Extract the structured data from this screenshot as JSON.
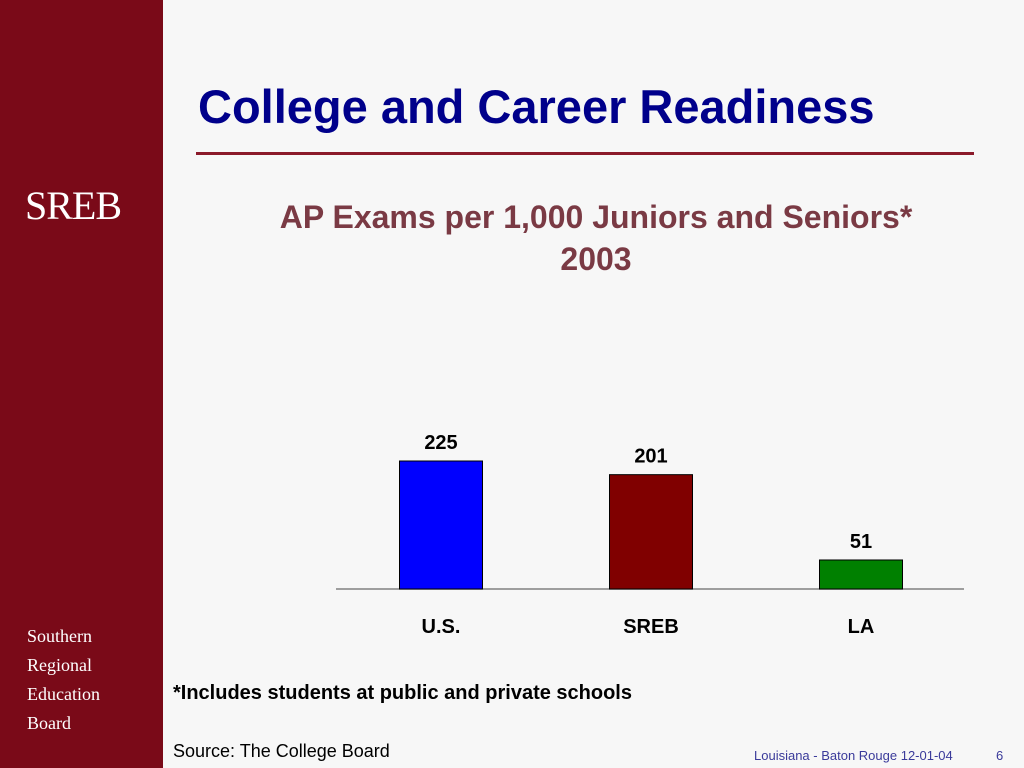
{
  "slide": {
    "title": "College and Career Readiness",
    "logo": "SREB",
    "org_lines": [
      "Southern",
      "Regional",
      "Education",
      "Board"
    ],
    "footnote": "*Includes students at public and private schools",
    "source": "Source: The College Board",
    "footer": "Louisiana - Baton Rouge 12-01-04",
    "page_number": "6"
  },
  "chart_data": {
    "type": "bar",
    "title": "AP Exams per 1,000 Juniors and Seniors*",
    "subtitle": "2003",
    "categories": [
      "U.S.",
      "SREB",
      "LA"
    ],
    "values": [
      225,
      201,
      51
    ],
    "labels": [
      "225",
      "201",
      "51"
    ],
    "colors": [
      "#0000ff",
      "#800000",
      "#008000"
    ],
    "ylim": [
      0,
      225
    ],
    "grid": false,
    "legend": false
  }
}
